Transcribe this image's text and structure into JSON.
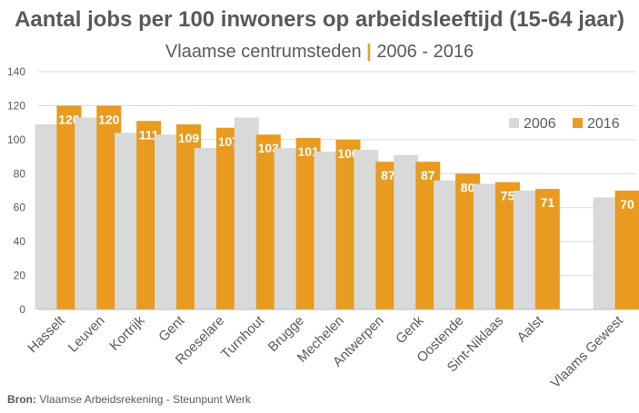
{
  "title": "Aantal jobs per 100 inwoners op arbeidsleeftijd (15-64 jaar)",
  "subtitle_left": "Vlaamse centrumsteden",
  "subtitle_sep": "|",
  "subtitle_right": "2006 - 2016",
  "source_label": "Bron:",
  "source_text": "Vlaamse Arbeidsrekening - Steunpunt Werk",
  "colors": {
    "s2006": "#D9D9D9",
    "s2016": "#E89B1E",
    "label": "#FFFFFF",
    "axis": "#595959",
    "grid": "#D9D9D9"
  },
  "chart_data": {
    "type": "bar",
    "title": "Aantal jobs per 100 inwoners op arbeidsleeftijd (15-64 jaar)",
    "subtitle": "Vlaamse centrumsteden | 2006 - 2016",
    "categories": [
      "Hasselt",
      "Leuven",
      "Kortrijk",
      "Gent",
      "Roeselare",
      "Turnhout",
      "Brugge",
      "Mechelen",
      "Antwerpen",
      "Genk",
      "Oostende",
      "Sint-Niklaas",
      "Aalst",
      "",
      "Vlaams Gewest"
    ],
    "series": [
      {
        "name": "2006",
        "values": [
          109,
          113,
          104,
          103,
          95,
          113,
          95,
          93,
          94,
          91,
          76,
          74,
          70,
          null,
          66
        ]
      },
      {
        "name": "2016",
        "values": [
          120,
          120,
          111,
          109,
          107,
          103,
          101,
          100,
          87,
          87,
          80,
          75,
          71,
          null,
          70
        ],
        "data_labels": true
      }
    ],
    "ylim": [
      0,
      140
    ],
    "yticks": [
      0,
      20,
      40,
      60,
      80,
      100,
      120,
      140
    ],
    "grid": true,
    "legend": "top-right"
  }
}
